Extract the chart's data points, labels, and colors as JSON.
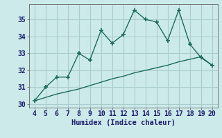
{
  "xlabel": "Humidex (Indice chaleur)",
  "background_color": "#cdeaea",
  "grid_color": "#aacccc",
  "line_color": "#1a6b5a",
  "x_data": [
    4,
    5,
    6,
    7,
    8,
    9,
    10,
    11,
    12,
    13,
    14,
    15,
    16,
    17,
    18,
    19,
    20
  ],
  "y_main": [
    30.2,
    31.0,
    31.6,
    31.6,
    33.0,
    32.6,
    34.35,
    33.6,
    34.1,
    35.55,
    35.0,
    34.85,
    33.75,
    35.55,
    33.55,
    32.75,
    32.3
  ],
  "y_trend": [
    30.2,
    30.4,
    30.6,
    30.75,
    30.9,
    31.1,
    31.3,
    31.5,
    31.65,
    31.85,
    32.0,
    32.15,
    32.3,
    32.5,
    32.65,
    32.8,
    32.3
  ],
  "xlim": [
    3.5,
    20.5
  ],
  "ylim": [
    29.8,
    35.9
  ],
  "yticks": [
    30,
    31,
    32,
    33,
    34,
    35
  ],
  "xticks": [
    4,
    5,
    6,
    7,
    8,
    9,
    10,
    11,
    12,
    13,
    14,
    15,
    16,
    17,
    18,
    19,
    20
  ],
  "fontsize_label": 7.5,
  "fontsize_tick": 7
}
